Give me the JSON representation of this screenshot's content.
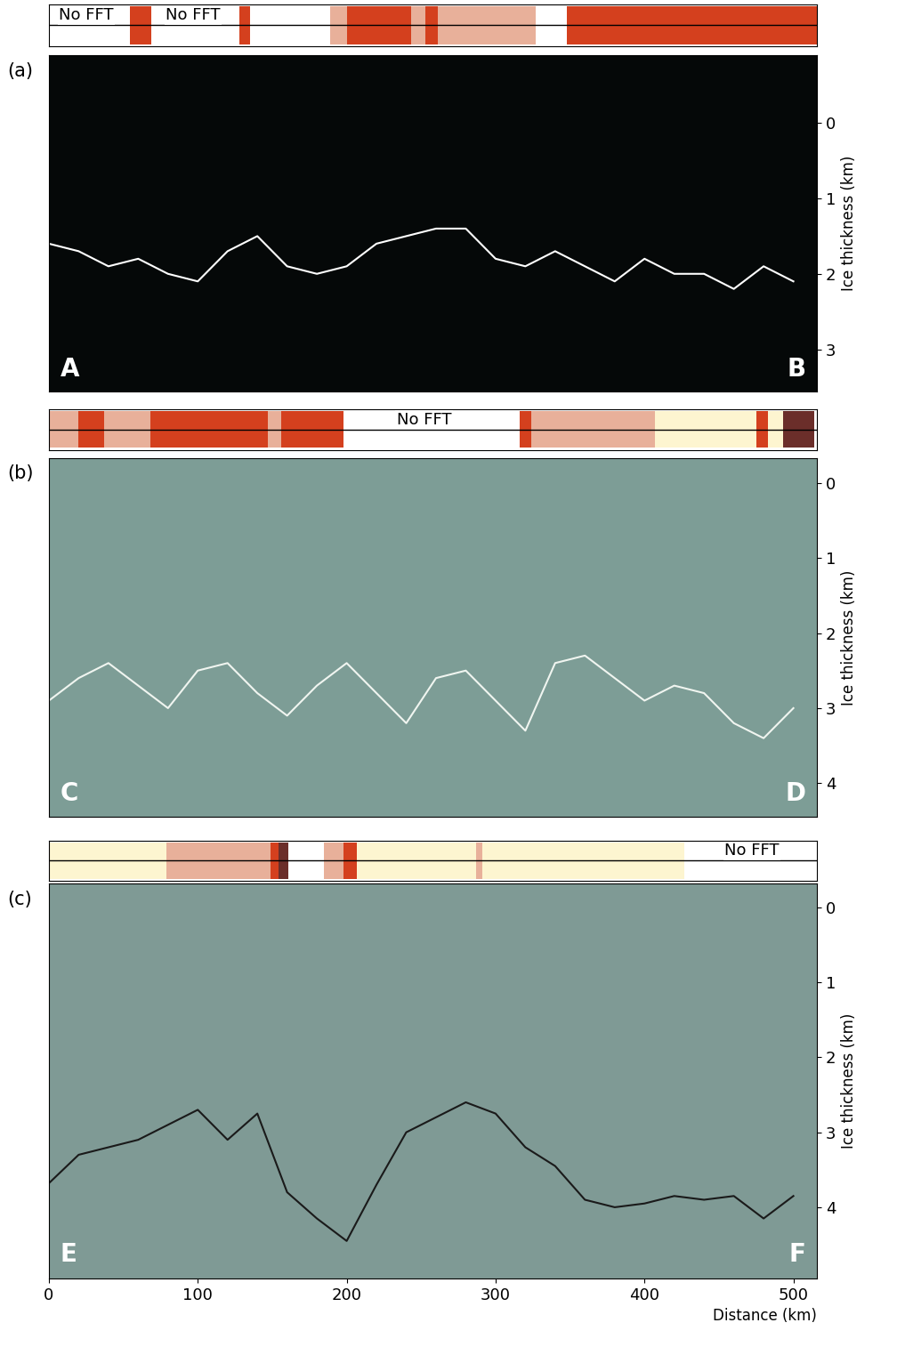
{
  "chart_data": [
    {
      "type": "line",
      "title": "(a)",
      "y_label": "Ice thickness (km)",
      "annotations": [
        "A",
        "B"
      ],
      "tick_labels": "y",
      "color": "#ffffff",
      "xlim": [
        0,
        516
      ],
      "ylim": [
        3.56,
        -0.9
      ],
      "yticks": [
        0,
        1,
        2,
        3
      ],
      "x": [
        0,
        20,
        40,
        60,
        80,
        100,
        120,
        140,
        160,
        180,
        200,
        220,
        240,
        260,
        280,
        300,
        320,
        340,
        360,
        380,
        400,
        420,
        440,
        460,
        480,
        500
      ],
      "values": [
        1.6,
        1.7,
        1.9,
        1.8,
        2.0,
        2.1,
        1.7,
        1.5,
        1.9,
        2.0,
        1.9,
        1.6,
        1.5,
        1.4,
        1.4,
        1.8,
        1.9,
        1.7,
        1.9,
        2.1,
        1.8,
        2.0,
        2.0,
        2.2,
        1.9,
        2.1
      ],
      "segments": [
        {
          "start": 54.6,
          "end": 69,
          "color": "#d4401e"
        },
        {
          "start": 128,
          "end": 135,
          "color": "#d4401e"
        },
        {
          "start": 189,
          "end": 200,
          "color": "#e8b09a"
        },
        {
          "start": 200,
          "end": 243,
          "color": "#d4401e"
        },
        {
          "start": 243,
          "end": 253,
          "color": "#e8b09a"
        },
        {
          "start": 253,
          "end": 261,
          "color": "#d4401e"
        },
        {
          "start": 261,
          "end": 327,
          "color": "#e8b09a"
        },
        {
          "start": 348,
          "end": 516,
          "color": "#d4401e"
        }
      ],
      "segment_texts": [
        {
          "x": 25,
          "text": "No FFT"
        },
        {
          "x": 97,
          "text": "No FFT"
        }
      ]
    },
    {
      "type": "line",
      "title": "(b)",
      "y_label": "Ice thickness (km)",
      "annotations": [
        "C",
        "D"
      ],
      "tick_labels": "y",
      "color": "#f0f5f0",
      "xlim": [
        0,
        516
      ],
      "ylim": [
        4.45,
        -0.33
      ],
      "yticks": [
        0,
        1,
        2,
        3,
        4
      ],
      "x": [
        0,
        20,
        40,
        60,
        80,
        100,
        120,
        140,
        160,
        180,
        200,
        220,
        240,
        260,
        280,
        300,
        320,
        340,
        360,
        380,
        400,
        420,
        440,
        460,
        480,
        500
      ],
      "values": [
        2.9,
        2.6,
        2.4,
        2.7,
        3.0,
        2.5,
        2.4,
        2.8,
        3.1,
        2.7,
        2.4,
        2.8,
        3.2,
        2.6,
        2.5,
        2.9,
        3.3,
        2.4,
        2.3,
        2.6,
        2.9,
        2.7,
        2.8,
        3.2,
        3.4,
        3.0
      ],
      "segments": [
        {
          "start": 0,
          "end": 20,
          "color": "#e8b09a"
        },
        {
          "start": 20,
          "end": 37,
          "color": "#d4401e"
        },
        {
          "start": 37,
          "end": 68,
          "color": "#e8b09a"
        },
        {
          "start": 68,
          "end": 147,
          "color": "#d4401e"
        },
        {
          "start": 147,
          "end": 156,
          "color": "#e8b09a"
        },
        {
          "start": 156,
          "end": 198,
          "color": "#d4401e"
        },
        {
          "start": 316,
          "end": 324,
          "color": "#d4401e"
        },
        {
          "start": 324,
          "end": 407,
          "color": "#e8b09a"
        },
        {
          "start": 407,
          "end": 475,
          "color": "#fdf5d0"
        },
        {
          "start": 475,
          "end": 483,
          "color": "#d4401e"
        },
        {
          "start": 483,
          "end": 493,
          "color": "#fdf5d0"
        },
        {
          "start": 493,
          "end": 514,
          "color": "#6b2e2a"
        }
      ],
      "segment_texts": [
        {
          "x": 252,
          "text": "No FFT"
        }
      ]
    },
    {
      "type": "line",
      "title": "(c)",
      "y_label": "Ice thickness (km)",
      "x_label": "Distance (km)",
      "annotations": [
        "E",
        "F"
      ],
      "color": "#1a1a1a",
      "xlim": [
        0,
        516
      ],
      "xticks": [
        0,
        100,
        200,
        300,
        400,
        500
      ],
      "ylim": [
        4.95,
        -0.32
      ],
      "yticks": [
        0,
        1,
        2,
        3,
        4
      ],
      "x": [
        0,
        20,
        40,
        60,
        80,
        100,
        120,
        140,
        160,
        180,
        200,
        220,
        240,
        260,
        280,
        300,
        320,
        340,
        360,
        380,
        400,
        420,
        440,
        460,
        480,
        500
      ],
      "values": [
        3.68,
        3.3,
        3.2,
        3.1,
        2.9,
        2.7,
        3.1,
        2.75,
        3.8,
        4.15,
        4.45,
        3.7,
        3.0,
        2.8,
        2.6,
        2.75,
        3.2,
        3.45,
        3.9,
        4.0,
        3.95,
        3.85,
        3.9,
        3.85,
        4.15,
        3.85
      ],
      "segments": [
        {
          "start": 0,
          "end": 79,
          "color": "#fdf5d0"
        },
        {
          "start": 79,
          "end": 149,
          "color": "#e8b09a"
        },
        {
          "start": 149,
          "end": 154,
          "color": "#d4401e"
        },
        {
          "start": 154,
          "end": 161,
          "color": "#6b2e2a"
        },
        {
          "start": 185,
          "end": 198,
          "color": "#e8b09a"
        },
        {
          "start": 198,
          "end": 207,
          "color": "#d4401e"
        },
        {
          "start": 207,
          "end": 287,
          "color": "#fdf5d0"
        },
        {
          "start": 287,
          "end": 291,
          "color": "#e8b09a"
        },
        {
          "start": 291,
          "end": 427,
          "color": "#fdf5d0"
        }
      ],
      "segment_texts": [
        {
          "x": 472,
          "text": "No FFT"
        }
      ]
    }
  ]
}
